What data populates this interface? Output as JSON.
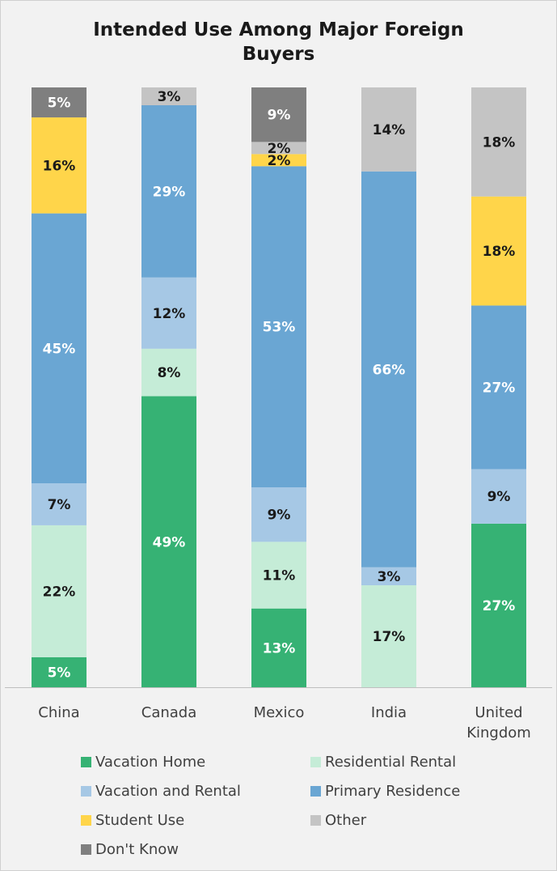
{
  "chart_data": {
    "type": "bar",
    "stacked": true,
    "title": "Intended Use Among Major Foreign Buyers",
    "categories": [
      "China",
      "Canada",
      "Mexico",
      "India",
      "United Kingdom"
    ],
    "ylim": [
      0,
      100
    ],
    "legend_position": "bottom",
    "series": [
      {
        "name": "Vacation Home",
        "color": "#36b274",
        "label_color": "#ffffff",
        "values": [
          5,
          49,
          13,
          0,
          27
        ]
      },
      {
        "name": "Residential Rental",
        "color": "#c5ecd7",
        "label_color": "#1a1a1a",
        "values": [
          22,
          8,
          11,
          17,
          0
        ]
      },
      {
        "name": "Vacation and Rental",
        "color": "#a6c8e5",
        "label_color": "#1a1a1a",
        "values": [
          7,
          12,
          9,
          3,
          9
        ]
      },
      {
        "name": "Primary Residence",
        "color": "#6aa6d3",
        "label_color": "#ffffff",
        "values": [
          45,
          29,
          53,
          66,
          27
        ]
      },
      {
        "name": "Student Use",
        "color": "#ffd54a",
        "label_color": "#1a1a1a",
        "values": [
          16,
          0,
          2,
          0,
          18
        ]
      },
      {
        "name": "Other",
        "color": "#c4c4c4",
        "label_color": "#1a1a1a",
        "values": [
          0,
          3,
          2,
          14,
          18
        ]
      },
      {
        "name": "Don't Know",
        "color": "#7f7f7f",
        "label_color": "#ffffff",
        "values": [
          5,
          0,
          9,
          0,
          0
        ]
      }
    ]
  }
}
